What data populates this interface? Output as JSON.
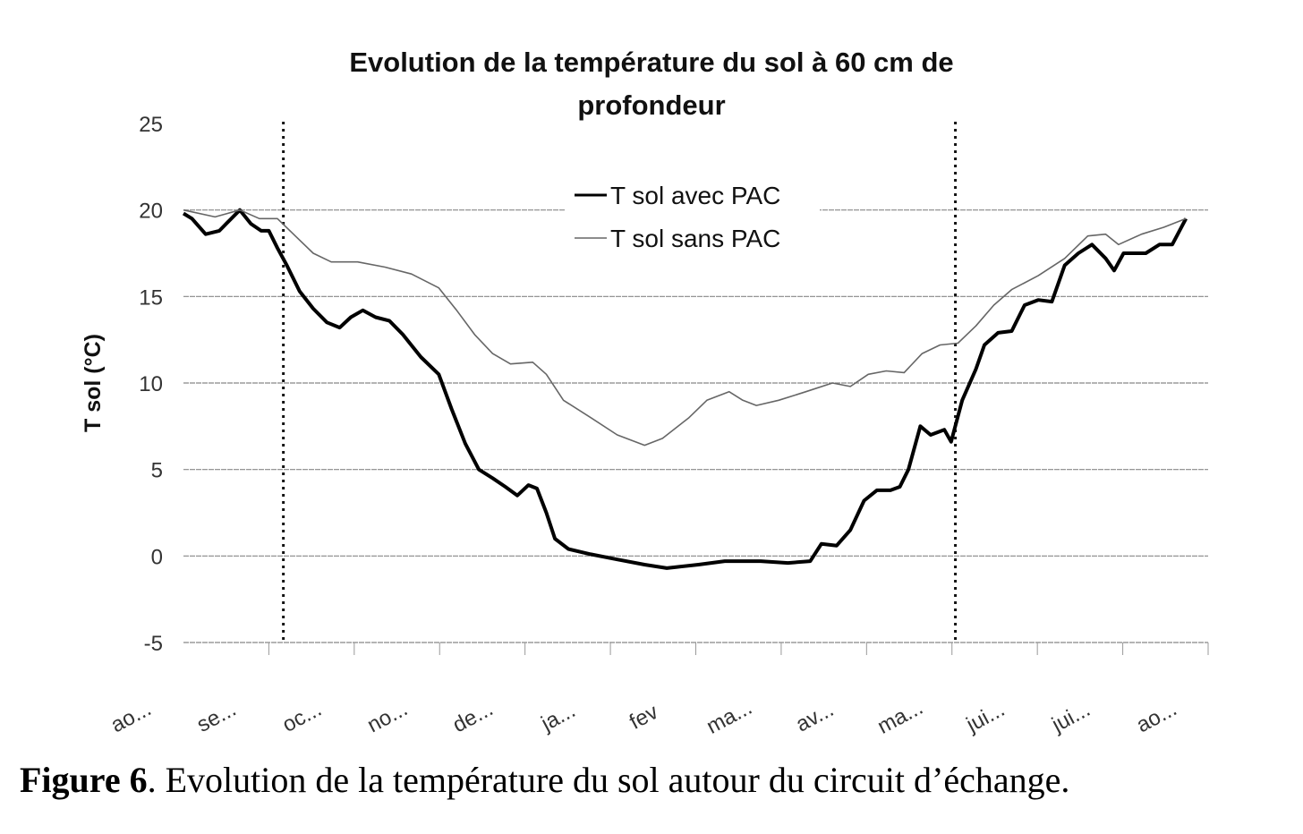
{
  "chart_data": {
    "type": "line",
    "title": "Evolution de la température du sol à 60 cm de profondeur",
    "title_lines": [
      "Evolution de la température du sol à 60 cm de",
      "profondeur"
    ],
    "xlabel": "",
    "ylabel": "T sol (°C)",
    "ylim": [
      -5,
      25
    ],
    "yticks": [
      25,
      20,
      15,
      10,
      5,
      0,
      -5
    ],
    "x_units": "months since start of August",
    "xlim": [
      0,
      12
    ],
    "xtick_labels": [
      "ao...",
      "se...",
      "oc...",
      "no...",
      "de...",
      "ja...",
      "fev",
      "ma...",
      "av...",
      "ma...",
      "jui...",
      "jui...",
      "ao..."
    ],
    "grid": "horizontal",
    "legend_position": "top-center",
    "vertical_markers": [
      1.17,
      9.04
    ],
    "series": [
      {
        "name": "T sol avec PAC",
        "color": "#000000",
        "x": [
          0,
          0.1,
          0.26,
          0.42,
          0.52,
          0.66,
          0.79,
          0.91,
          1.0,
          1.1,
          1.21,
          1.36,
          1.52,
          1.68,
          1.83,
          1.96,
          2.1,
          2.25,
          2.41,
          2.57,
          2.78,
          2.99,
          3.14,
          3.3,
          3.46,
          3.62,
          3.77,
          3.91,
          4.04,
          4.14,
          4.25,
          4.35,
          4.51,
          4.77,
          5.08,
          5.4,
          5.66,
          6.03,
          6.34,
          6.76,
          7.08,
          7.34,
          7.47,
          7.65,
          7.81,
          7.97,
          8.12,
          8.28,
          8.39,
          8.49,
          8.63,
          8.75,
          8.91,
          8.99,
          9.12,
          9.28,
          9.38,
          9.54,
          9.7,
          9.85,
          10.01,
          10.17,
          10.32,
          10.48,
          10.64,
          10.8,
          10.9,
          11.01,
          11.27,
          11.43,
          11.58,
          11.74
        ],
        "y": [
          19.8,
          19.5,
          18.6,
          18.8,
          19.3,
          20.0,
          19.2,
          18.8,
          18.8,
          17.8,
          16.8,
          15.3,
          14.3,
          13.5,
          13.2,
          13.8,
          14.2,
          13.8,
          13.6,
          12.8,
          11.5,
          10.5,
          8.5,
          6.5,
          5.0,
          4.5,
          4.0,
          3.5,
          4.1,
          3.9,
          2.5,
          1.0,
          0.4,
          0.1,
          -0.2,
          -0.5,
          -0.7,
          -0.5,
          -0.3,
          -0.3,
          -0.4,
          -0.3,
          0.7,
          0.6,
          1.5,
          3.2,
          3.8,
          3.8,
          4.0,
          5.0,
          7.5,
          7.0,
          7.3,
          6.6,
          9.0,
          10.8,
          12.2,
          12.9,
          13.0,
          14.5,
          14.8,
          14.7,
          16.8,
          17.5,
          18.0,
          17.2,
          16.5,
          17.5,
          17.5,
          18.0,
          18.0,
          19.5
        ]
      },
      {
        "name": "T sol sans PAC",
        "color": "#666666",
        "x": [
          0,
          0.37,
          0.66,
          0.89,
          1.1,
          1.31,
          1.52,
          1.73,
          2.04,
          2.36,
          2.67,
          2.99,
          3.2,
          3.41,
          3.62,
          3.83,
          4.09,
          4.25,
          4.45,
          4.77,
          5.08,
          5.4,
          5.61,
          5.92,
          6.13,
          6.39,
          6.55,
          6.71,
          6.97,
          7.29,
          7.6,
          7.81,
          8.02,
          8.23,
          8.44,
          8.65,
          8.86,
          9.07,
          9.28,
          9.49,
          9.7,
          10.01,
          10.32,
          10.59,
          10.8,
          10.95,
          11.22,
          11.48,
          11.74
        ],
        "y": [
          20.0,
          19.6,
          20.0,
          19.5,
          19.5,
          18.5,
          17.5,
          17.0,
          17.0,
          16.7,
          16.3,
          15.5,
          14.2,
          12.8,
          11.7,
          11.1,
          11.2,
          10.5,
          9.0,
          8.0,
          7.0,
          6.4,
          6.8,
          8.0,
          9.0,
          9.5,
          9.0,
          8.7,
          9.0,
          9.5,
          10.0,
          9.8,
          10.5,
          10.7,
          10.6,
          11.7,
          12.2,
          12.3,
          13.3,
          14.5,
          15.4,
          16.2,
          17.2,
          18.5,
          18.6,
          18.0,
          18.6,
          19.0,
          19.5
        ]
      }
    ]
  },
  "caption": {
    "label": "Figure 6",
    "text": ". Evolution de la température du sol autour du circuit d’échange."
  }
}
